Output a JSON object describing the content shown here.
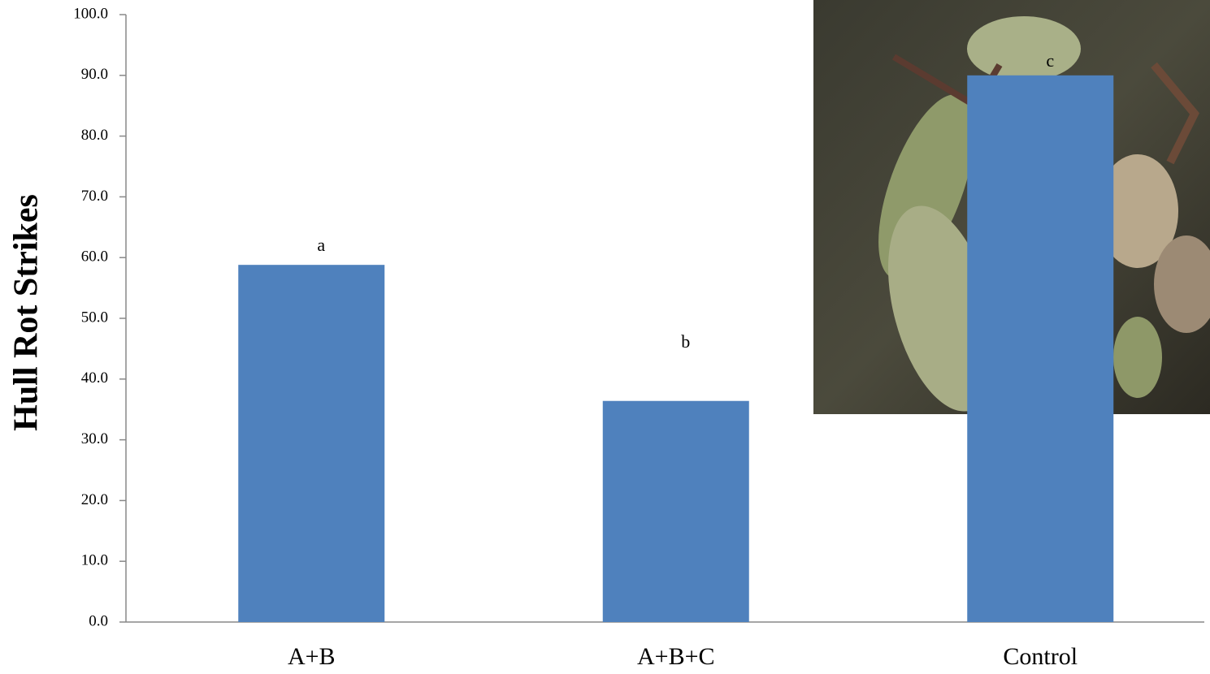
{
  "chart_data": {
    "type": "bar",
    "y_label": "Hull Rot Strikes",
    "categories": [
      "A+B",
      "A+B+C",
      "Control"
    ],
    "values": [
      58.8,
      36.4,
      90.0
    ],
    "bar_labels": [
      "a",
      "b",
      "c"
    ],
    "color": "#4f81bd",
    "ylim": [
      0,
      100
    ],
    "yticks": [
      {
        "value": 0,
        "label": "0.0"
      },
      {
        "value": 10,
        "label": "10.0"
      },
      {
        "value": 20,
        "label": "20.0"
      },
      {
        "value": 30,
        "label": "30.0"
      },
      {
        "value": 40,
        "label": "40.0"
      },
      {
        "value": 50,
        "label": "50.0"
      },
      {
        "value": 60,
        "label": "60.0"
      },
      {
        "value": 70,
        "label": "70.0"
      },
      {
        "value": 80,
        "label": "80.0"
      },
      {
        "value": 90,
        "label": "90.0"
      },
      {
        "value": 100,
        "label": "100.0"
      }
    ],
    "grid": false
  }
}
